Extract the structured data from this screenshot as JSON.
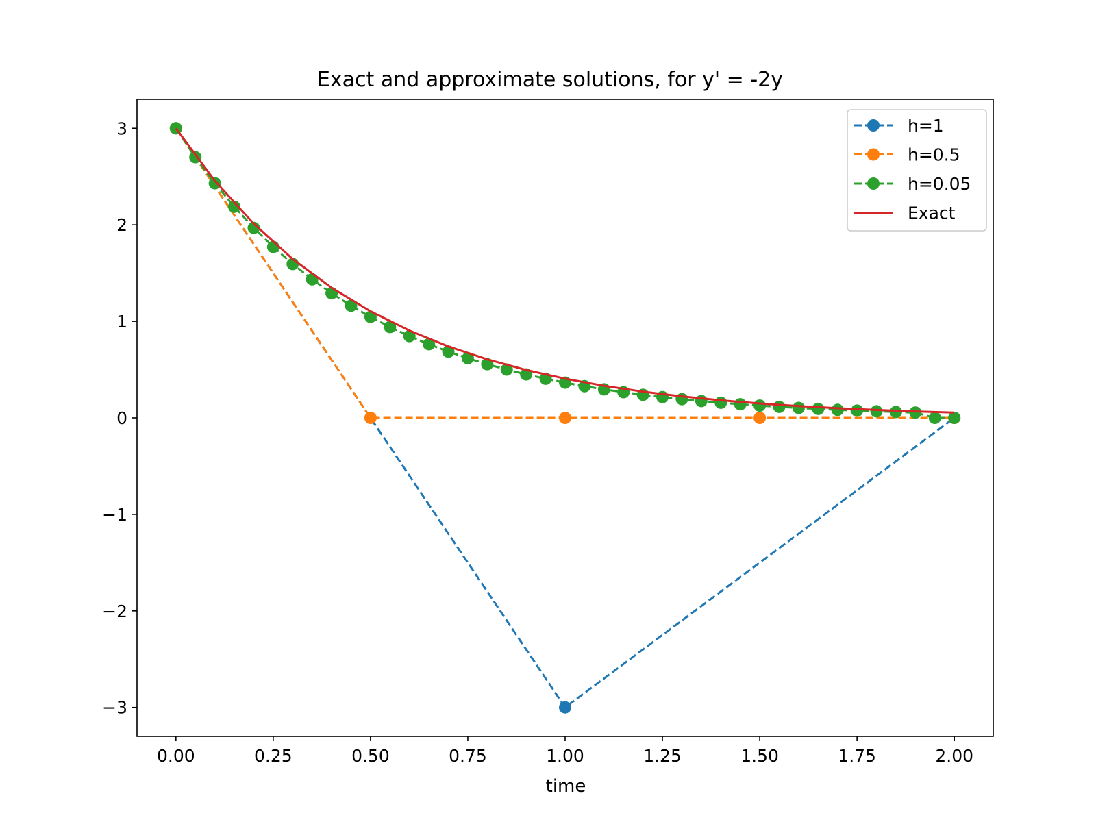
{
  "chart_data": {
    "type": "line",
    "title": "Exact and approximate solutions, for y' = -2y",
    "xlabel": "time",
    "ylabel": "",
    "xlim": [
      -0.1,
      2.1
    ],
    "ylim": [
      -3.3,
      3.3
    ],
    "xticks": [
      "0.00",
      "0.25",
      "0.50",
      "0.75",
      "1.00",
      "1.25",
      "1.50",
      "1.75",
      "2.00"
    ],
    "xtick_values": [
      0,
      0.25,
      0.5,
      0.75,
      1.0,
      1.25,
      1.5,
      1.75,
      2.0
    ],
    "yticks": [
      "−3",
      "−2",
      "−1",
      "0",
      "1",
      "2",
      "3"
    ],
    "ytick_values": [
      -3,
      -2,
      -1,
      0,
      1,
      2,
      3
    ],
    "grid": false,
    "legend_position": "top-right",
    "series": [
      {
        "name": "h=1",
        "color": "#1f77b4",
        "style": "dashed",
        "marker": "circle",
        "x": [
          0,
          1,
          2
        ],
        "y": [
          3,
          -3,
          0
        ]
      },
      {
        "name": "h=0.5",
        "color": "#ff7f0e",
        "style": "dashed",
        "marker": "circle",
        "x": [
          0,
          0.5,
          1.0,
          1.5,
          2.0
        ],
        "y": [
          3,
          0,
          0,
          0,
          0
        ]
      },
      {
        "name": "h=0.05",
        "color": "#2ca02c",
        "style": "dashed",
        "marker": "circle",
        "x": [
          0,
          0.05,
          0.1,
          0.15,
          0.2,
          0.25,
          0.3,
          0.35,
          0.4,
          0.45,
          0.5,
          0.55,
          0.6,
          0.65,
          0.7,
          0.75,
          0.8,
          0.85,
          0.9,
          0.95,
          1.0,
          1.05,
          1.1,
          1.15,
          1.2,
          1.25,
          1.3,
          1.35,
          1.4,
          1.45,
          1.5,
          1.55,
          1.6,
          1.65,
          1.7,
          1.75,
          1.8,
          1.85,
          1.9,
          1.95,
          2.0
        ],
        "y": [
          3.0,
          2.7,
          2.43,
          2.187,
          1.968,
          1.771,
          1.594,
          1.435,
          1.291,
          1.162,
          1.046,
          0.941,
          0.847,
          0.763,
          0.686,
          0.618,
          0.556,
          0.5,
          0.45,
          0.405,
          0.365,
          0.328,
          0.295,
          0.266,
          0.239,
          0.215,
          0.194,
          0.174,
          0.157,
          0.141,
          0.127,
          0.114,
          0.103,
          0.093,
          0.083,
          0.075,
          0.068,
          0.061,
          0.055,
          0.0,
          0.0
        ]
      },
      {
        "name": "Exact",
        "color": "#d62728",
        "style": "solid",
        "marker": "none",
        "x": [
          0,
          0.1,
          0.2,
          0.3,
          0.4,
          0.5,
          0.6,
          0.7,
          0.8,
          0.9,
          1.0,
          1.1,
          1.2,
          1.3,
          1.4,
          1.5,
          1.6,
          1.7,
          1.8,
          1.9,
          2.0
        ],
        "y": [
          3.0,
          2.456,
          2.011,
          1.646,
          1.348,
          1.104,
          0.904,
          0.74,
          0.606,
          0.496,
          0.406,
          0.332,
          0.272,
          0.223,
          0.182,
          0.149,
          0.122,
          0.1,
          0.082,
          0.067,
          0.055
        ]
      }
    ]
  }
}
